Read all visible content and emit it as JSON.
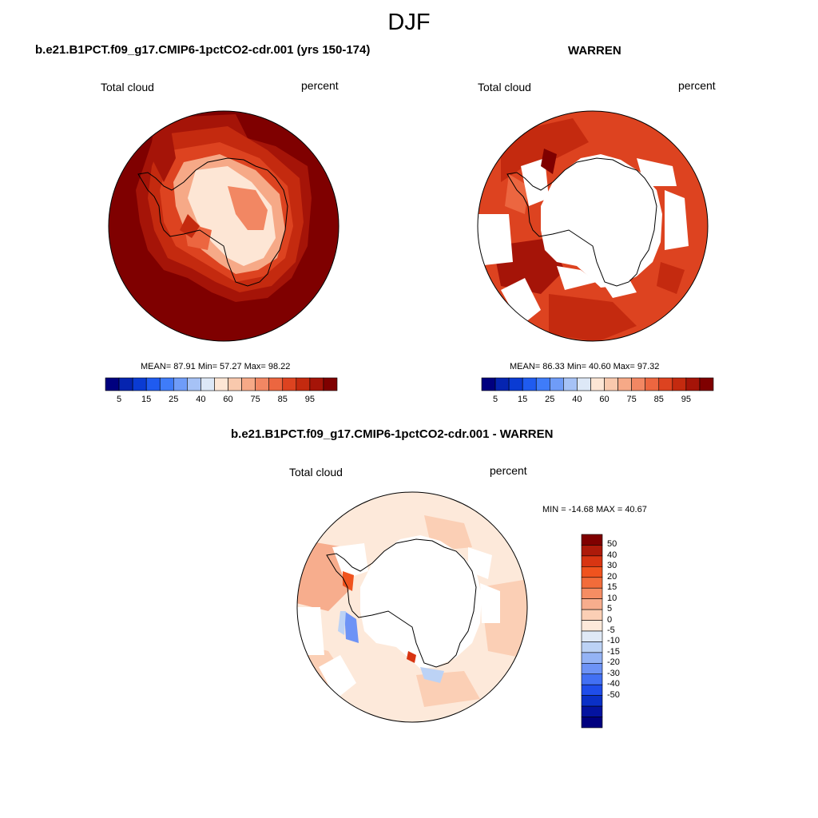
{
  "title": "DJF",
  "panels": [
    {
      "title": "b.e21.B1PCT.f09_g17.CMIP6-1pctCO2-cdr.001 (yrs 150-174)",
      "left_label": "Total cloud",
      "right_label": "percent",
      "stats": "MEAN=  87.91  Min=  57.27  Max=  98.22"
    },
    {
      "title": "WARREN",
      "left_label": "Total cloud",
      "right_label": "percent",
      "stats": "MEAN=  86.33  Min=  40.60  Max=  97.32"
    },
    {
      "title": "b.e21.B1PCT.f09_g17.CMIP6-1pctCO2-cdr.001 - WARREN",
      "left_label": "Total cloud",
      "right_label": "percent",
      "stats": "MIN = -14.68 MAX =  40.67"
    }
  ],
  "colorbar_h": {
    "colors": [
      "#00007f",
      "#0524b0",
      "#0a3bd3",
      "#1f5bf0",
      "#3f7cf9",
      "#6f9cf8",
      "#a6c2f6",
      "#dde8f7",
      "#fde6d5",
      "#f9c9ad",
      "#f6a987",
      "#f28763",
      "#ec6640",
      "#dd4320",
      "#c42a0f",
      "#a51408",
      "#7f0000"
    ],
    "ticks": [
      "5",
      "15",
      "25",
      "40",
      "60",
      "75",
      "85",
      "95"
    ]
  },
  "colorbar_v": {
    "colors": [
      "#7f0000",
      "#ad1a0a",
      "#d83512",
      "#f0531e",
      "#f26c3a",
      "#f58d63",
      "#f7ad8d",
      "#fbcfb5",
      "#fde9da",
      "#dfe9f6",
      "#bcd2f5",
      "#94b3f5",
      "#6d93f6",
      "#4270f4",
      "#1f4dea",
      "#0a30c7",
      "#0413a0",
      "#00007f"
    ],
    "ticks": [
      "50",
      "40",
      "30",
      "20",
      "15",
      "10",
      "5",
      "0",
      "-5",
      "-10",
      "-15",
      "-20",
      "-30",
      "-40",
      "-50"
    ]
  }
}
